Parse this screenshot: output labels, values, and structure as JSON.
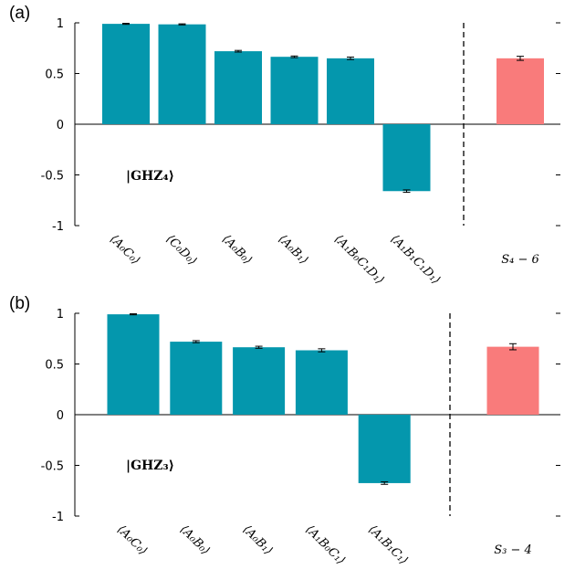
{
  "colors": {
    "main_bar": "#0497ad",
    "summary_bar": "#f97b7b",
    "axis": "#000000",
    "error_bar": "#000000"
  },
  "chart_data": [
    {
      "type": "bar",
      "panel": "(a)",
      "annotation": "|GHZ₄⟩",
      "ylim": [
        -1,
        1
      ],
      "yticks": [
        1,
        0.5,
        0,
        -0.5,
        -1
      ],
      "ytick_labels": [
        "1",
        "0.5",
        "0",
        "-0.5",
        "-1"
      ],
      "categories": [
        "⟨A₀C₀⟩",
        "⟨C₀D₀⟩",
        "⟨A₀B₀⟩",
        "⟨A₀B₁⟩",
        "⟨A₁B₀C₁D₁⟩",
        "⟨A₁B₁C₁D₁⟩"
      ],
      "values": [
        0.99,
        0.985,
        0.72,
        0.665,
        0.65,
        -0.66
      ],
      "errors": [
        0.005,
        0.005,
        0.008,
        0.008,
        0.012,
        0.012
      ],
      "summary": {
        "label": "S₄ − 6",
        "value": 0.65,
        "error": 0.02
      },
      "separator": "dashed vertical line",
      "grid": false
    },
    {
      "type": "bar",
      "panel": "(b)",
      "annotation": "|GHZ₃⟩",
      "ylim": [
        -1,
        1
      ],
      "yticks": [
        1,
        0.5,
        0,
        -0.5,
        -1
      ],
      "ytick_labels": [
        "1",
        "0.5",
        "0",
        "-0.5",
        "-1"
      ],
      "categories": [
        "⟨A₀C₀⟩",
        "⟨A₀B₀⟩",
        "⟨A₀B₁⟩",
        "⟨A₁B₀C₁⟩",
        "⟨A₁B₁C₁⟩"
      ],
      "values": [
        0.99,
        0.72,
        0.665,
        0.635,
        -0.675
      ],
      "errors": [
        0.005,
        0.01,
        0.01,
        0.015,
        0.012
      ],
      "summary": {
        "label": "S₃ − 4",
        "value": 0.67,
        "error": 0.03
      },
      "separator": "dashed vertical line",
      "grid": false
    }
  ]
}
